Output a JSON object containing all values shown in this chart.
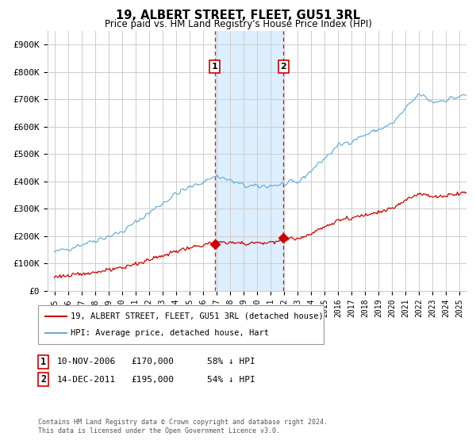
{
  "title": "19, ALBERT STREET, FLEET, GU51 3RL",
  "subtitle": "Price paid vs. HM Land Registry's House Price Index (HPI)",
  "footer": "Contains HM Land Registry data © Crown copyright and database right 2024.\nThis data is licensed under the Open Government Licence v3.0.",
  "legend_line1": "19, ALBERT STREET, FLEET, GU51 3RL (detached house)",
  "legend_line2": "HPI: Average price, detached house, Hart",
  "transaction1_date": "10-NOV-2006",
  "transaction1_price": "£170,000",
  "transaction1_note": "58% ↓ HPI",
  "transaction2_date": "14-DEC-2011",
  "transaction2_price": "£195,000",
  "transaction2_note": "54% ↓ HPI",
  "hpi_color": "#6baed6",
  "price_color": "#cc0000",
  "shade_color": "#ddeeff",
  "vline_color": "#cc0000",
  "grid_color": "#cccccc",
  "ylim_max": 950000,
  "yticks": [
    0,
    100000,
    200000,
    300000,
    400000,
    500000,
    600000,
    700000,
    800000,
    900000
  ],
  "ytick_labels": [
    "£0",
    "£100K",
    "£200K",
    "£300K",
    "£400K",
    "£500K",
    "£600K",
    "£700K",
    "£800K",
    "£900K"
  ],
  "transaction1_x": 2006.86,
  "transaction2_x": 2011.95,
  "transaction1_y": 170000,
  "transaction2_y": 195000,
  "shade_x1": 2006.86,
  "shade_x2": 2011.95,
  "xlim_min": 1994.5,
  "xlim_max": 2025.5
}
